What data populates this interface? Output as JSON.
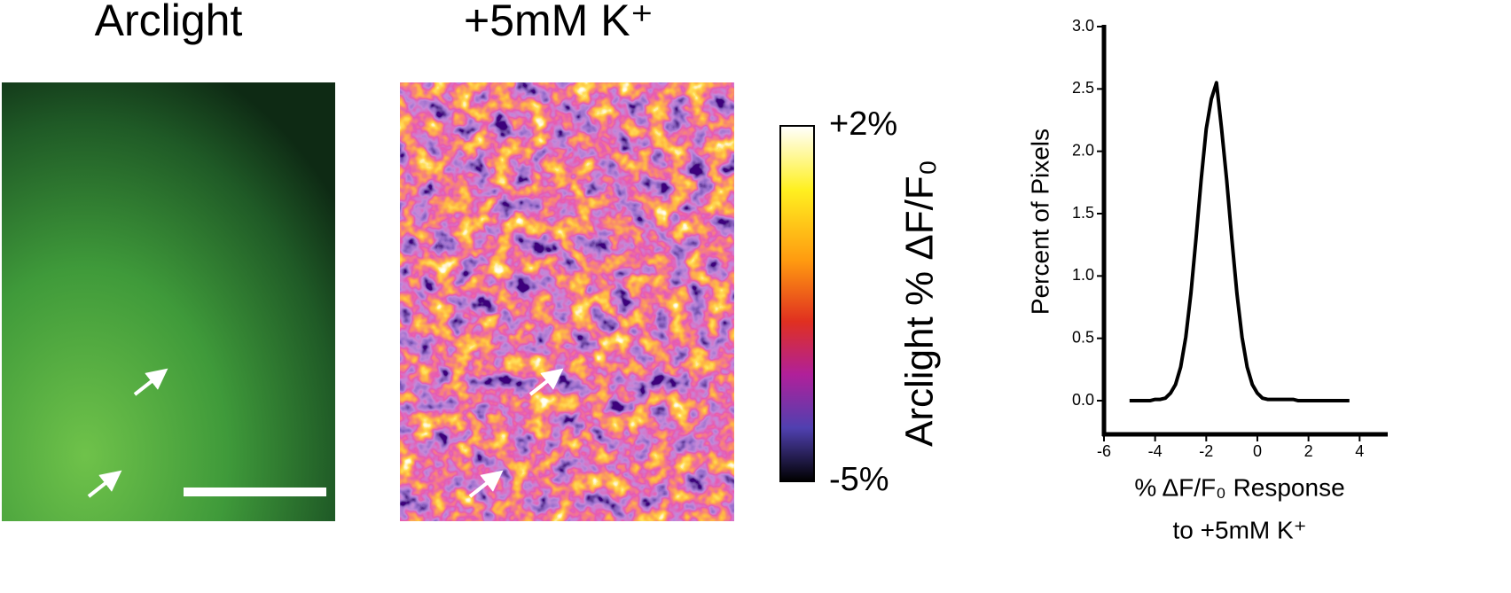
{
  "panels": {
    "left_title": "Arclight",
    "middle_title": "+5mM K⁺"
  },
  "colorbar": {
    "label": "Arclight % ΔF/F₀",
    "clim": [
      -5,
      2
    ],
    "ticks": [
      {
        "value": 2,
        "label": "+2%"
      },
      {
        "value": -5,
        "label": "-5%"
      }
    ]
  },
  "chart_data": {
    "type": "line",
    "ylabel": "Percent of Pixels",
    "xlabel": [
      "% ΔF/F₀ Response",
      "to +5mM K⁺"
    ],
    "x": [
      -5.0,
      -4.8,
      -4.6,
      -4.4,
      -4.2,
      -4.0,
      -3.8,
      -3.6,
      -3.4,
      -3.2,
      -3.0,
      -2.8,
      -2.6,
      -2.4,
      -2.2,
      -2.0,
      -1.8,
      -1.6,
      -1.4,
      -1.2,
      -1.0,
      -0.8,
      -0.6,
      -0.4,
      -0.2,
      0.0,
      0.2,
      0.4,
      0.6,
      0.8,
      1.0,
      1.2,
      1.4,
      1.6,
      1.8,
      2.0,
      2.2,
      2.4,
      2.6,
      2.8,
      3.0,
      3.2,
      3.4,
      3.6
    ],
    "series": [
      {
        "color": "#000000",
        "values": [
          0,
          0,
          0,
          0,
          0,
          0.01,
          0.01,
          0.02,
          0.06,
          0.13,
          0.27,
          0.51,
          0.86,
          1.3,
          1.77,
          2.18,
          2.42,
          2.55,
          2.18,
          1.77,
          1.3,
          0.86,
          0.51,
          0.27,
          0.13,
          0.06,
          0.02,
          0.01,
          0.01,
          0.01,
          0.01,
          0.01,
          0.01,
          0,
          0,
          0,
          0,
          0,
          0,
          0,
          0,
          0,
          0,
          0
        ]
      }
    ],
    "xlim": [
      -6,
      5.1
    ],
    "ylim": [
      -0.27,
      3.0
    ],
    "xticks": [
      -6,
      -4,
      -2,
      0,
      2,
      4
    ],
    "yticks": [
      {
        "value": 0,
        "label": "0.0"
      },
      {
        "value": 0.5,
        "label": "0.5"
      },
      {
        "value": 1,
        "label": "1.0"
      },
      {
        "value": 1.5,
        "label": "1.5"
      },
      {
        "value": 2,
        "label": "2.0"
      },
      {
        "value": 2.5,
        "label": "2.5"
      },
      {
        "value": 3,
        "label": "3.0"
      }
    ]
  }
}
